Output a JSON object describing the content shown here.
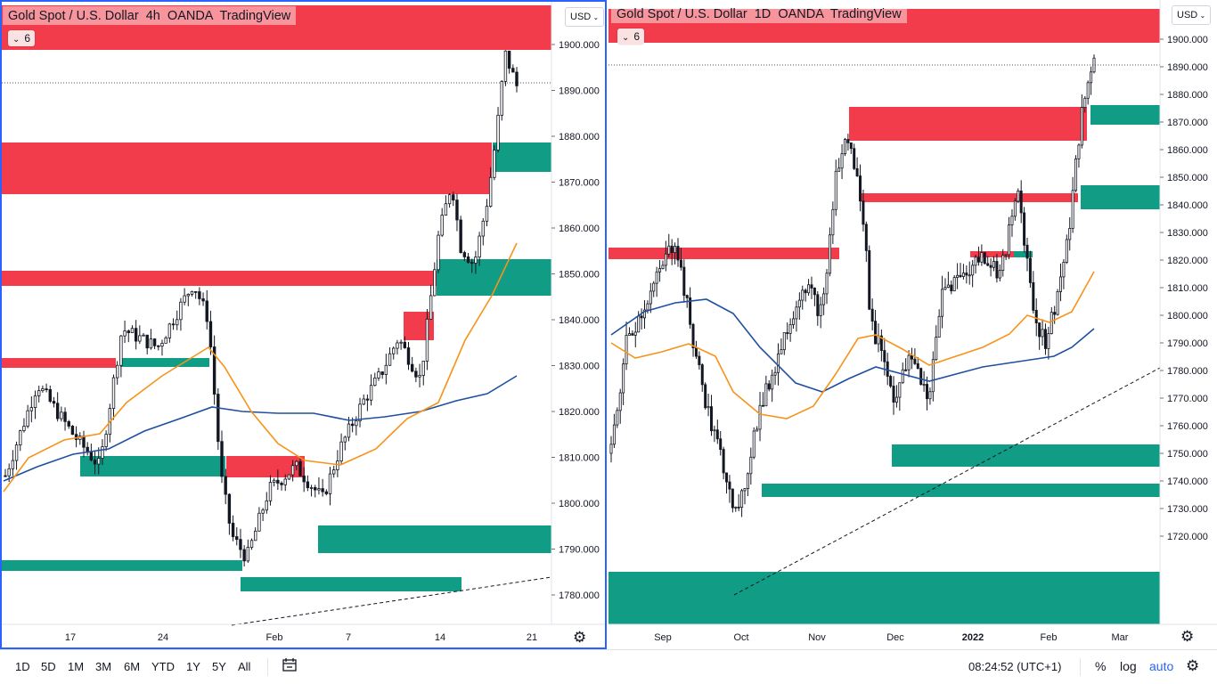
{
  "left_chart": {
    "title": "Gold Spot / U.S. Dollar  4h  OANDA  TradingView",
    "indicator_count": "6",
    "currency": "USD",
    "price_ticks": [
      "1900.000",
      "1890.000",
      "1880.000",
      "1870.000",
      "1860.000",
      "1850.000",
      "1840.000",
      "1830.000",
      "1820.000",
      "1810.000",
      "1800.000",
      "1790.000",
      "1780.000"
    ],
    "time_ticks": [
      "17",
      "24",
      "Feb",
      "7",
      "14",
      "21"
    ]
  },
  "right_chart": {
    "title": "Gold Spot / U.S. Dollar  1D  OANDA  TradingView",
    "indicator_count": "6",
    "currency": "USD",
    "price_ticks": [
      "1900.000",
      "1890.000",
      "1880.000",
      "1870.000",
      "1860.000",
      "1850.000",
      "1840.000",
      "1830.000",
      "1820.000",
      "1810.000",
      "1800.000",
      "1790.000",
      "1780.000",
      "1770.000",
      "1760.000",
      "1750.000",
      "1740.000",
      "1730.000",
      "1720.000"
    ],
    "time_ticks": [
      "Sep",
      "Oct",
      "Nov",
      "Dec",
      "2022",
      "Feb",
      "Mar"
    ]
  },
  "bottom_toolbar": {
    "ranges": [
      "1D",
      "5D",
      "1M",
      "3M",
      "6M",
      "YTD",
      "1Y",
      "5Y",
      "All"
    ],
    "clock": "08:24:52 (UTC+1)",
    "percent_label": "%",
    "log_label": "log",
    "auto_label": "auto"
  },
  "colors": {
    "supply_zone": "#f23645",
    "demand_zone": "#089981",
    "ma_fast": "#f7931a",
    "ma_slow": "#1e4fa0",
    "selection_border": "#2962ff",
    "auto_accent": "#2962ff"
  },
  "icons": {
    "settings": "gear-icon",
    "compare": "compare-dates-icon",
    "chevron": "chevron-down-icon"
  }
}
